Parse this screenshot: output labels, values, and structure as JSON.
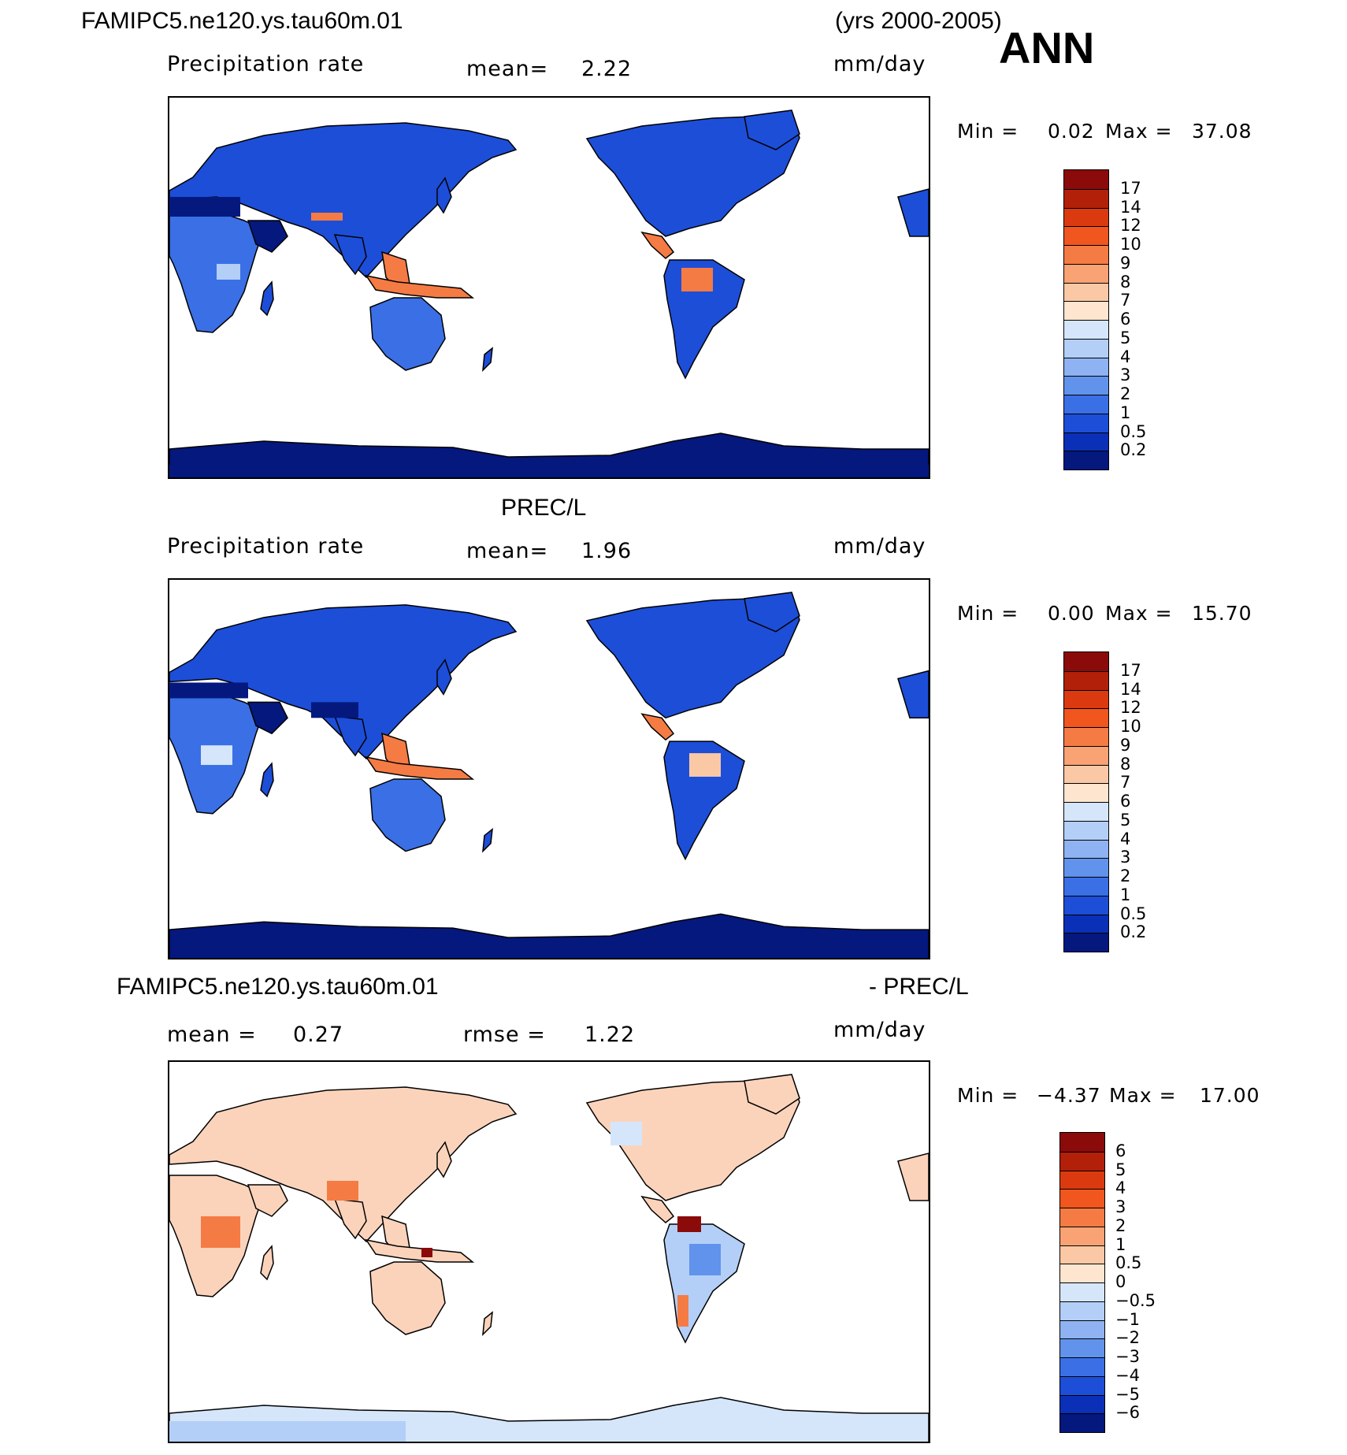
{
  "header": {
    "case_name": "FAMIPC5.ne120.ys.tau60m.01",
    "years": "(yrs 2000-2005)",
    "season": "ANN"
  },
  "panels": [
    {
      "id": "model",
      "title": "",
      "variable": "Precipitation rate",
      "stat1_label": "mean=",
      "stat1_value": "2.22",
      "units": "mm/day",
      "min_label": "Min =",
      "min_value": "0.02",
      "max_label": "Max =",
      "max_value": "37.08",
      "colorbar_labels": [
        "17",
        "14",
        "12",
        "10",
        "9",
        "8",
        "7",
        "6",
        "5",
        "4",
        "3",
        "2",
        "1",
        "0.5",
        "0.2"
      ],
      "colorbar_colors": [
        "#8b0a0a",
        "#b3200a",
        "#db3a10",
        "#f0561e",
        "#f57b44",
        "#f9a274",
        "#fbc8a6",
        "#fde5cf",
        "#d5e6fb",
        "#b4cff7",
        "#8fb3f2",
        "#6193ec",
        "#3a6fe6",
        "#1d4ed8",
        "#0b30b8",
        "#04187e"
      ]
    },
    {
      "id": "obs",
      "title": "PREC/L",
      "variable": "Precipitation rate",
      "stat1_label": "mean=",
      "stat1_value": "1.96",
      "units": "mm/day",
      "min_label": "Min =",
      "min_value": "0.00",
      "max_label": "Max =",
      "max_value": "15.70",
      "colorbar_labels": [
        "17",
        "14",
        "12",
        "10",
        "9",
        "8",
        "7",
        "6",
        "5",
        "4",
        "3",
        "2",
        "1",
        "0.5",
        "0.2"
      ],
      "colorbar_colors": [
        "#8b0a0a",
        "#b3200a",
        "#db3a10",
        "#f0561e",
        "#f57b44",
        "#f9a274",
        "#fbc8a6",
        "#fde5cf",
        "#d5e6fb",
        "#b4cff7",
        "#8fb3f2",
        "#6193ec",
        "#3a6fe6",
        "#1d4ed8",
        "#0b30b8",
        "#04187e"
      ]
    },
    {
      "id": "diff",
      "title_left": "FAMIPC5.ne120.ys.tau60m.01",
      "title_right": "- PREC/L",
      "stat1_label": "mean =",
      "stat1_value": "0.27",
      "stat2_label": "rmse =",
      "stat2_value": "1.22",
      "units": "mm/day",
      "min_label": "Min =",
      "min_value": "−4.37",
      "max_label": "Max =",
      "max_value": "17.00",
      "colorbar_labels": [
        "6",
        "5",
        "4",
        "3",
        "2",
        "1",
        "0.5",
        "0",
        "−0.5",
        "−1",
        "−2",
        "−3",
        "−4",
        "−5",
        "−6"
      ],
      "colorbar_colors": [
        "#8b0a0a",
        "#b3200a",
        "#db3a10",
        "#f0561e",
        "#f57b44",
        "#f9a274",
        "#fbc8a6",
        "#fde5cf",
        "#d5e6fb",
        "#b4cff7",
        "#8fb3f2",
        "#6193ec",
        "#3a6fe6",
        "#1d4ed8",
        "#0b30b8",
        "#04187e"
      ]
    }
  ],
  "map_colors": {
    "land_blue_dark": "#04187e",
    "land_blue_mid": "#1d4ed8",
    "land_blue_light": "#3a6fe6",
    "wet_orange": "#f57b44",
    "diff_pale_red": "#fbd3bb",
    "diff_pale_blue": "#d5e6fb",
    "ocean": "#ffffff",
    "coast": "#000000"
  }
}
